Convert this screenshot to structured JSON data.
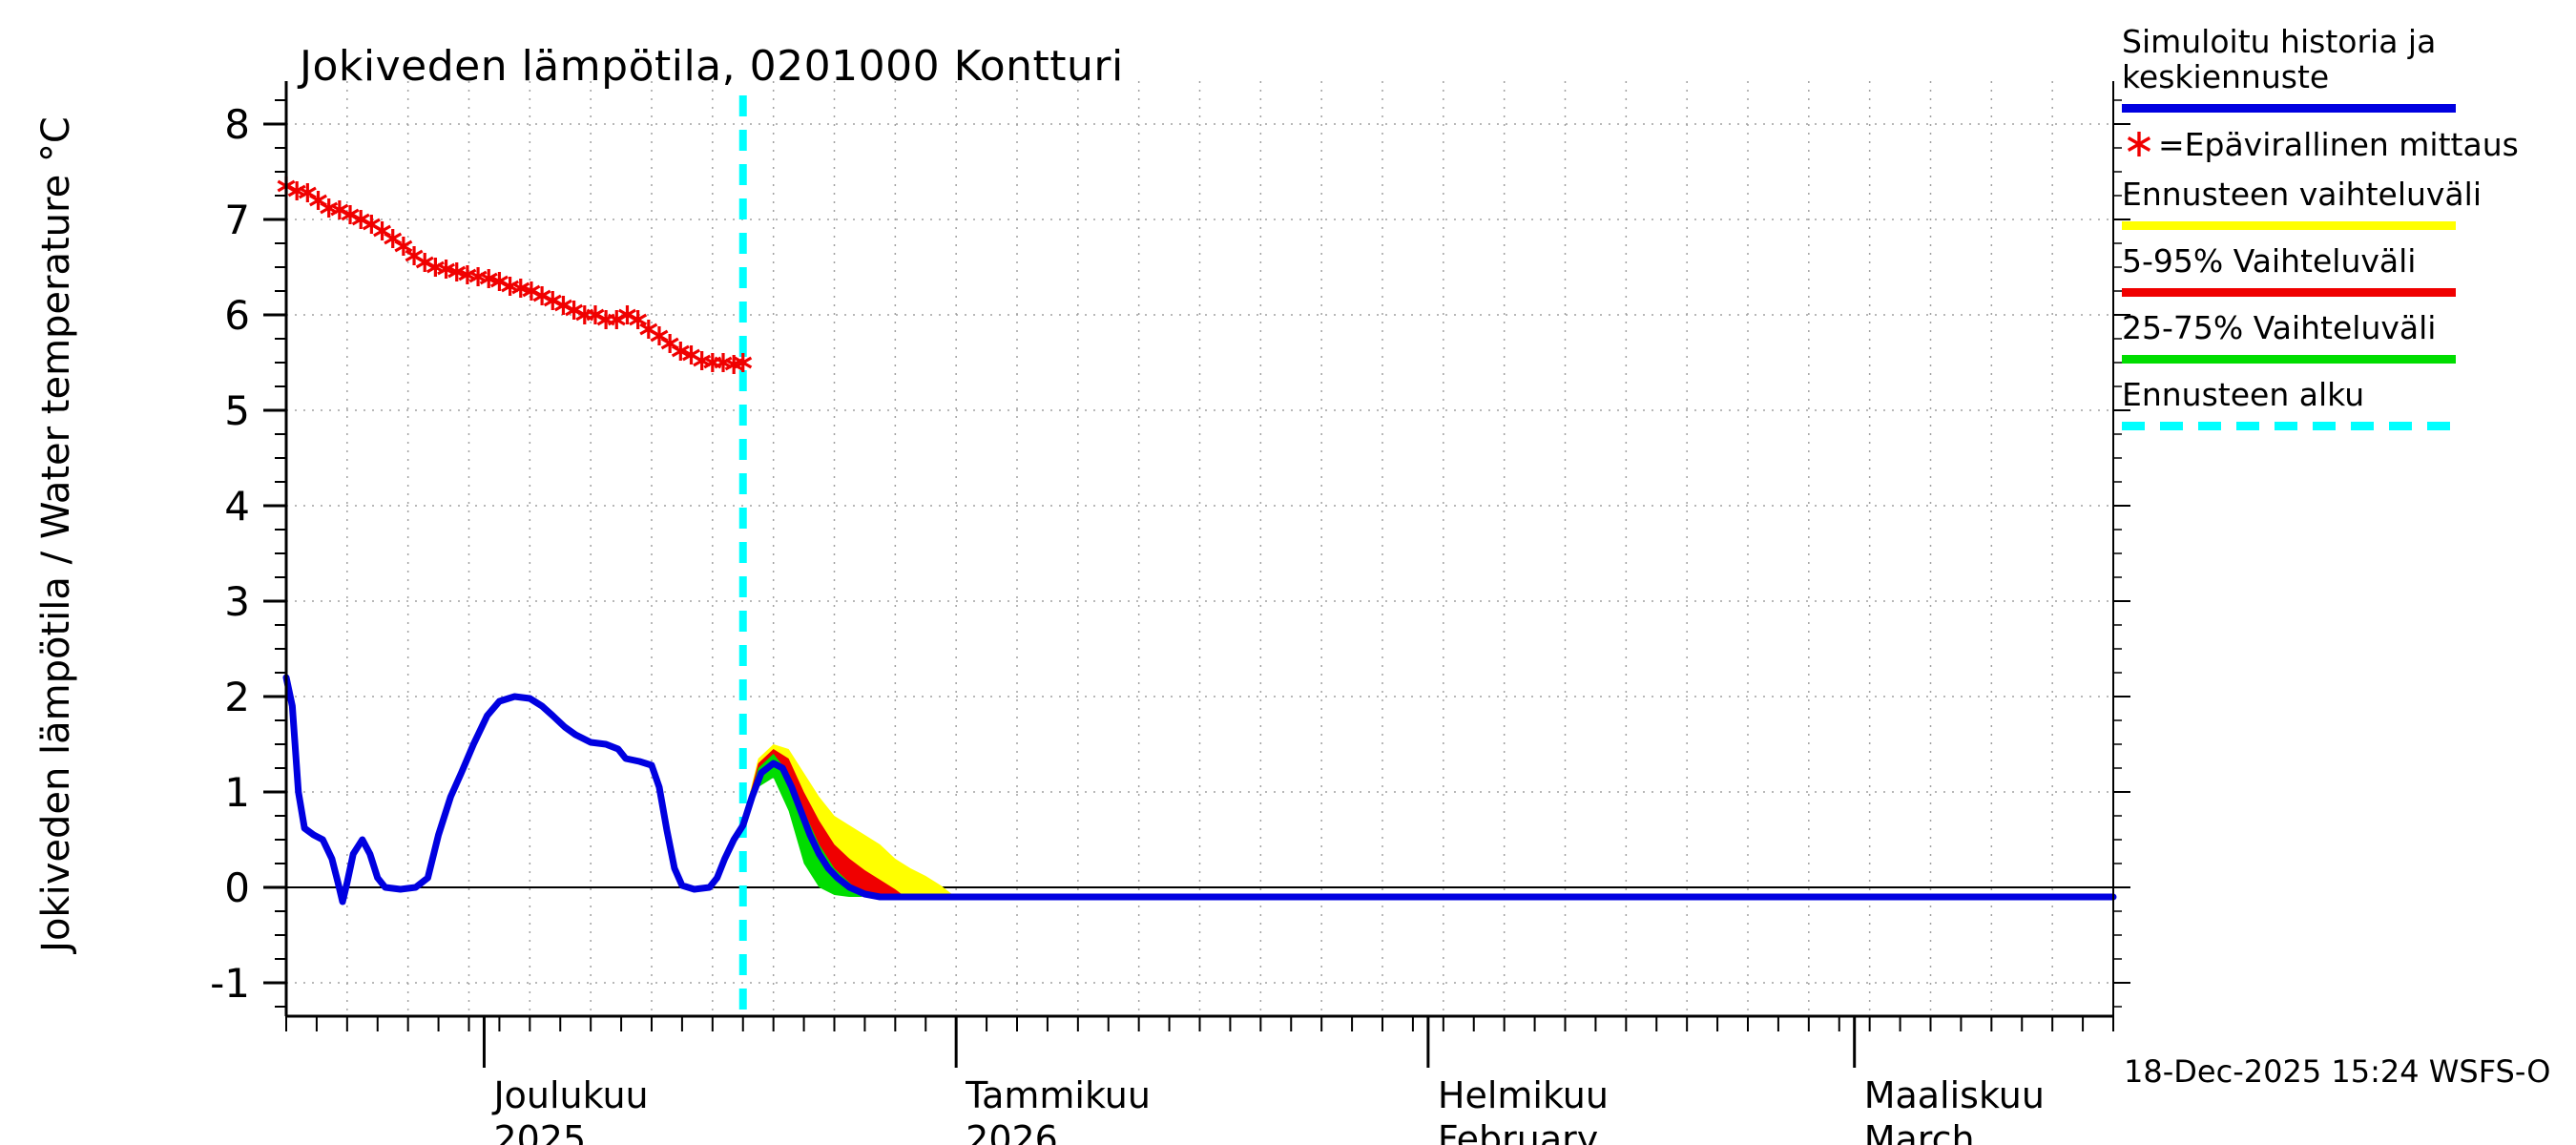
{
  "title": "Jokiveden lämpötila, 0201000 Kontturi",
  "ylabel": "Jokiveden lämpötila / Water temperature      °C",
  "footer": "18-Dec-2025 15:24 WSFS-O",
  "colors": {
    "blue": "#0000e0",
    "red": "#f00000",
    "yellow": "#ffff00",
    "green": "#00dd00",
    "cyan": "#00ffff",
    "grid": "#a0a0a0",
    "axis": "#000000"
  },
  "legend": [
    {
      "label": "Simuloitu historia ja keskiennuste",
      "swatch": "line",
      "color_key": "blue"
    },
    {
      "label": "=Epävirallinen mittaus",
      "swatch": "asterisk",
      "color_key": "red"
    },
    {
      "label": "Ennusteen vaihteluväli",
      "swatch": "line",
      "color_key": "yellow"
    },
    {
      "label": "5-95% Vaihteluväli",
      "swatch": "line",
      "color_key": "red"
    },
    {
      "label": "25-75% Vaihteluväli",
      "swatch": "line",
      "color_key": "green"
    },
    {
      "label": "Ennusteen alku",
      "swatch": "dashed",
      "color_key": "cyan"
    }
  ],
  "chart_data": {
    "type": "line",
    "title": "Jokiveden lämpötila, 0201000 Kontturi",
    "xlabel": "",
    "ylabel": "Jokiveden lämpötila / Water temperature  °C",
    "ylim": [
      -1,
      8
    ],
    "y_ticks": [
      -1,
      0,
      1,
      2,
      3,
      4,
      5,
      6,
      7,
      8
    ],
    "x_unit": "days",
    "x_range": [
      0,
      120
    ],
    "forecast_start_day": 30,
    "grid": true,
    "legend_position": "right",
    "month_labels": [
      {
        "day": 13,
        "top": "Joulukuu",
        "bottom": "2025"
      },
      {
        "day": 44,
        "top": "Tammikuu",
        "bottom": "2026"
      },
      {
        "day": 75,
        "top": "Helmikuu",
        "bottom": "February"
      },
      {
        "day": 103,
        "top": "Maaliskuu",
        "bottom": "March"
      }
    ],
    "series": [
      {
        "name": "Simuloitu historia ja keskiennuste",
        "type": "line",
        "color": "blue",
        "points": [
          [
            0,
            2.2
          ],
          [
            0.4,
            1.9
          ],
          [
            0.8,
            1.0
          ],
          [
            1.2,
            0.62
          ],
          [
            1.8,
            0.55
          ],
          [
            2.4,
            0.5
          ],
          [
            3.0,
            0.3
          ],
          [
            3.4,
            0.05
          ],
          [
            3.7,
            -0.15
          ],
          [
            4.0,
            0.05
          ],
          [
            4.4,
            0.35
          ],
          [
            5.0,
            0.5
          ],
          [
            5.5,
            0.35
          ],
          [
            6.0,
            0.1
          ],
          [
            6.5,
            0.0
          ],
          [
            7.5,
            -0.02
          ],
          [
            8.5,
            0.0
          ],
          [
            9.3,
            0.1
          ],
          [
            10.0,
            0.55
          ],
          [
            10.8,
            0.95
          ],
          [
            11.5,
            1.2
          ],
          [
            12.3,
            1.5
          ],
          [
            13.2,
            1.8
          ],
          [
            14.0,
            1.95
          ],
          [
            15.0,
            2.0
          ],
          [
            16.0,
            1.98
          ],
          [
            16.8,
            1.9
          ],
          [
            17.5,
            1.8
          ],
          [
            18.3,
            1.68
          ],
          [
            19.0,
            1.6
          ],
          [
            20.0,
            1.52
          ],
          [
            21.0,
            1.5
          ],
          [
            21.8,
            1.45
          ],
          [
            22.3,
            1.35
          ],
          [
            23.2,
            1.32
          ],
          [
            24.0,
            1.28
          ],
          [
            24.5,
            1.05
          ],
          [
            25.0,
            0.6
          ],
          [
            25.5,
            0.2
          ],
          [
            26.0,
            0.02
          ],
          [
            26.8,
            -0.02
          ],
          [
            27.8,
            0.0
          ],
          [
            28.3,
            0.1
          ],
          [
            28.8,
            0.3
          ],
          [
            29.4,
            0.5
          ],
          [
            30.0,
            0.65
          ],
          [
            30.6,
            0.95
          ],
          [
            31.2,
            1.2
          ],
          [
            32.0,
            1.3
          ],
          [
            32.6,
            1.25
          ],
          [
            33.2,
            1.05
          ],
          [
            33.8,
            0.8
          ],
          [
            34.4,
            0.55
          ],
          [
            35.0,
            0.35
          ],
          [
            35.6,
            0.2
          ],
          [
            36.2,
            0.1
          ],
          [
            37.0,
            0.0
          ],
          [
            38.0,
            -0.07
          ],
          [
            39.0,
            -0.1
          ],
          [
            45,
            -0.1
          ],
          [
            60,
            -0.1
          ],
          [
            80,
            -0.1
          ],
          [
            100,
            -0.1
          ],
          [
            120,
            -0.1
          ]
        ]
      },
      {
        "name": "Epävirallinen mittaus",
        "type": "asterisk",
        "color": "red",
        "points": [
          [
            0,
            7.35
          ],
          [
            0.7,
            7.3
          ],
          [
            1.4,
            7.28
          ],
          [
            2.1,
            7.2
          ],
          [
            2.8,
            7.12
          ],
          [
            3.5,
            7.1
          ],
          [
            4.2,
            7.05
          ],
          [
            4.9,
            7.0
          ],
          [
            5.6,
            6.95
          ],
          [
            6.3,
            6.88
          ],
          [
            7.0,
            6.8
          ],
          [
            7.7,
            6.72
          ],
          [
            8.4,
            6.62
          ],
          [
            9.1,
            6.55
          ],
          [
            9.8,
            6.5
          ],
          [
            10.5,
            6.48
          ],
          [
            11.2,
            6.45
          ],
          [
            11.9,
            6.42
          ],
          [
            12.6,
            6.4
          ],
          [
            13.3,
            6.38
          ],
          [
            14.0,
            6.35
          ],
          [
            14.7,
            6.3
          ],
          [
            15.4,
            6.28
          ],
          [
            16.1,
            6.25
          ],
          [
            16.8,
            6.2
          ],
          [
            17.5,
            6.15
          ],
          [
            18.2,
            6.1
          ],
          [
            18.9,
            6.05
          ],
          [
            19.6,
            6.0
          ],
          [
            20.3,
            6.0
          ],
          [
            21.0,
            5.95
          ],
          [
            21.7,
            5.95
          ],
          [
            22.4,
            6.0
          ],
          [
            23.1,
            5.95
          ],
          [
            23.8,
            5.85
          ],
          [
            24.5,
            5.78
          ],
          [
            25.2,
            5.7
          ],
          [
            25.9,
            5.62
          ],
          [
            26.6,
            5.58
          ],
          [
            27.3,
            5.52
          ],
          [
            28.0,
            5.5
          ],
          [
            28.7,
            5.5
          ],
          [
            29.4,
            5.48
          ],
          [
            30.0,
            5.5
          ]
        ]
      }
    ],
    "bands": [
      {
        "name": "Ennusteen vaihteluväli",
        "color": "yellow",
        "points": [
          [
            30,
            0.6,
            0.7
          ],
          [
            31,
            1.05,
            1.35
          ],
          [
            32,
            1.25,
            1.5
          ],
          [
            33,
            0.9,
            1.45
          ],
          [
            34,
            0.45,
            1.2
          ],
          [
            35,
            0.2,
            0.95
          ],
          [
            36,
            0.05,
            0.75
          ],
          [
            37,
            -0.05,
            0.65
          ],
          [
            38,
            -0.1,
            0.55
          ],
          [
            39,
            -0.1,
            0.45
          ],
          [
            40,
            -0.1,
            0.3
          ],
          [
            41,
            -0.1,
            0.2
          ],
          [
            42,
            -0.1,
            0.12
          ],
          [
            43,
            -0.1,
            0.02
          ],
          [
            43.8,
            -0.1,
            -0.08
          ]
        ]
      },
      {
        "name": "5-95% Vaihteluväli",
        "color": "red",
        "points": [
          [
            30,
            0.6,
            0.7
          ],
          [
            31,
            1.05,
            1.3
          ],
          [
            32,
            1.2,
            1.45
          ],
          [
            33,
            0.85,
            1.35
          ],
          [
            34,
            0.35,
            1.0
          ],
          [
            35,
            0.1,
            0.7
          ],
          [
            36,
            -0.02,
            0.45
          ],
          [
            37,
            -0.08,
            0.3
          ],
          [
            38,
            -0.1,
            0.18
          ],
          [
            39,
            -0.1,
            0.08
          ],
          [
            40,
            -0.1,
            -0.02
          ],
          [
            40.5,
            -0.1,
            -0.08
          ]
        ]
      },
      {
        "name": "25-75% Vaihteluväli",
        "color": "green",
        "points": [
          [
            30,
            0.6,
            0.68
          ],
          [
            31,
            1.05,
            1.25
          ],
          [
            32,
            1.15,
            1.4
          ],
          [
            33,
            0.8,
            1.2
          ],
          [
            34,
            0.25,
            0.8
          ],
          [
            35,
            0.0,
            0.45
          ],
          [
            36,
            -0.08,
            0.2
          ],
          [
            37,
            -0.1,
            0.05
          ],
          [
            37.8,
            -0.1,
            -0.07
          ]
        ]
      }
    ]
  }
}
